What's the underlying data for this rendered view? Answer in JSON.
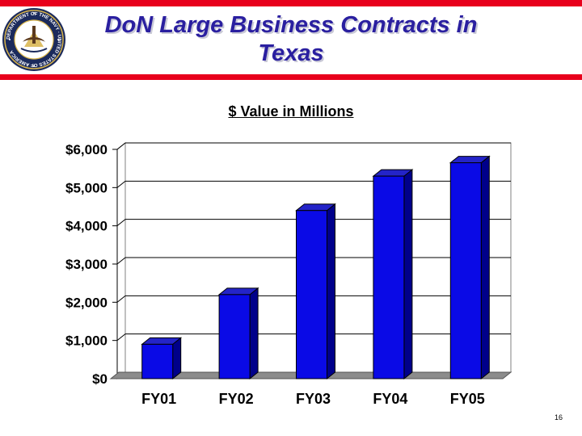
{
  "slide": {
    "title": "DoN Large Business Contracts in Texas",
    "page_number": "16"
  },
  "seal": {
    "ring_text": "DEPARTMENT OF THE NAVY · UNITED STATES OF AMERICA",
    "colors": {
      "ring": "#1b2a5c",
      "gold": "#d8b44a",
      "field": "#ffffff"
    }
  },
  "colors": {
    "accent_red": "#e8001c",
    "title": "#2a1fa0",
    "bar_front": "#0a0ae6",
    "bar_side": "#00008a",
    "bar_top": "#2424c8",
    "floor": "#8c8c8c"
  },
  "chart_data": {
    "type": "bar",
    "title": "$ Value in Millions",
    "categories": [
      "FY01",
      "FY02",
      "FY03",
      "FY04",
      "FY05"
    ],
    "values": [
      900,
      2200,
      4400,
      5300,
      5650
    ],
    "ylim": [
      0,
      6000
    ],
    "yticks": [
      0,
      1000,
      2000,
      3000,
      4000,
      5000,
      6000
    ],
    "ytick_labels": [
      "$0",
      "$1,000",
      "$2,000",
      "$3,000",
      "$4,000",
      "$5,000",
      "$6,000"
    ],
    "grid": true,
    "style": "3d"
  }
}
